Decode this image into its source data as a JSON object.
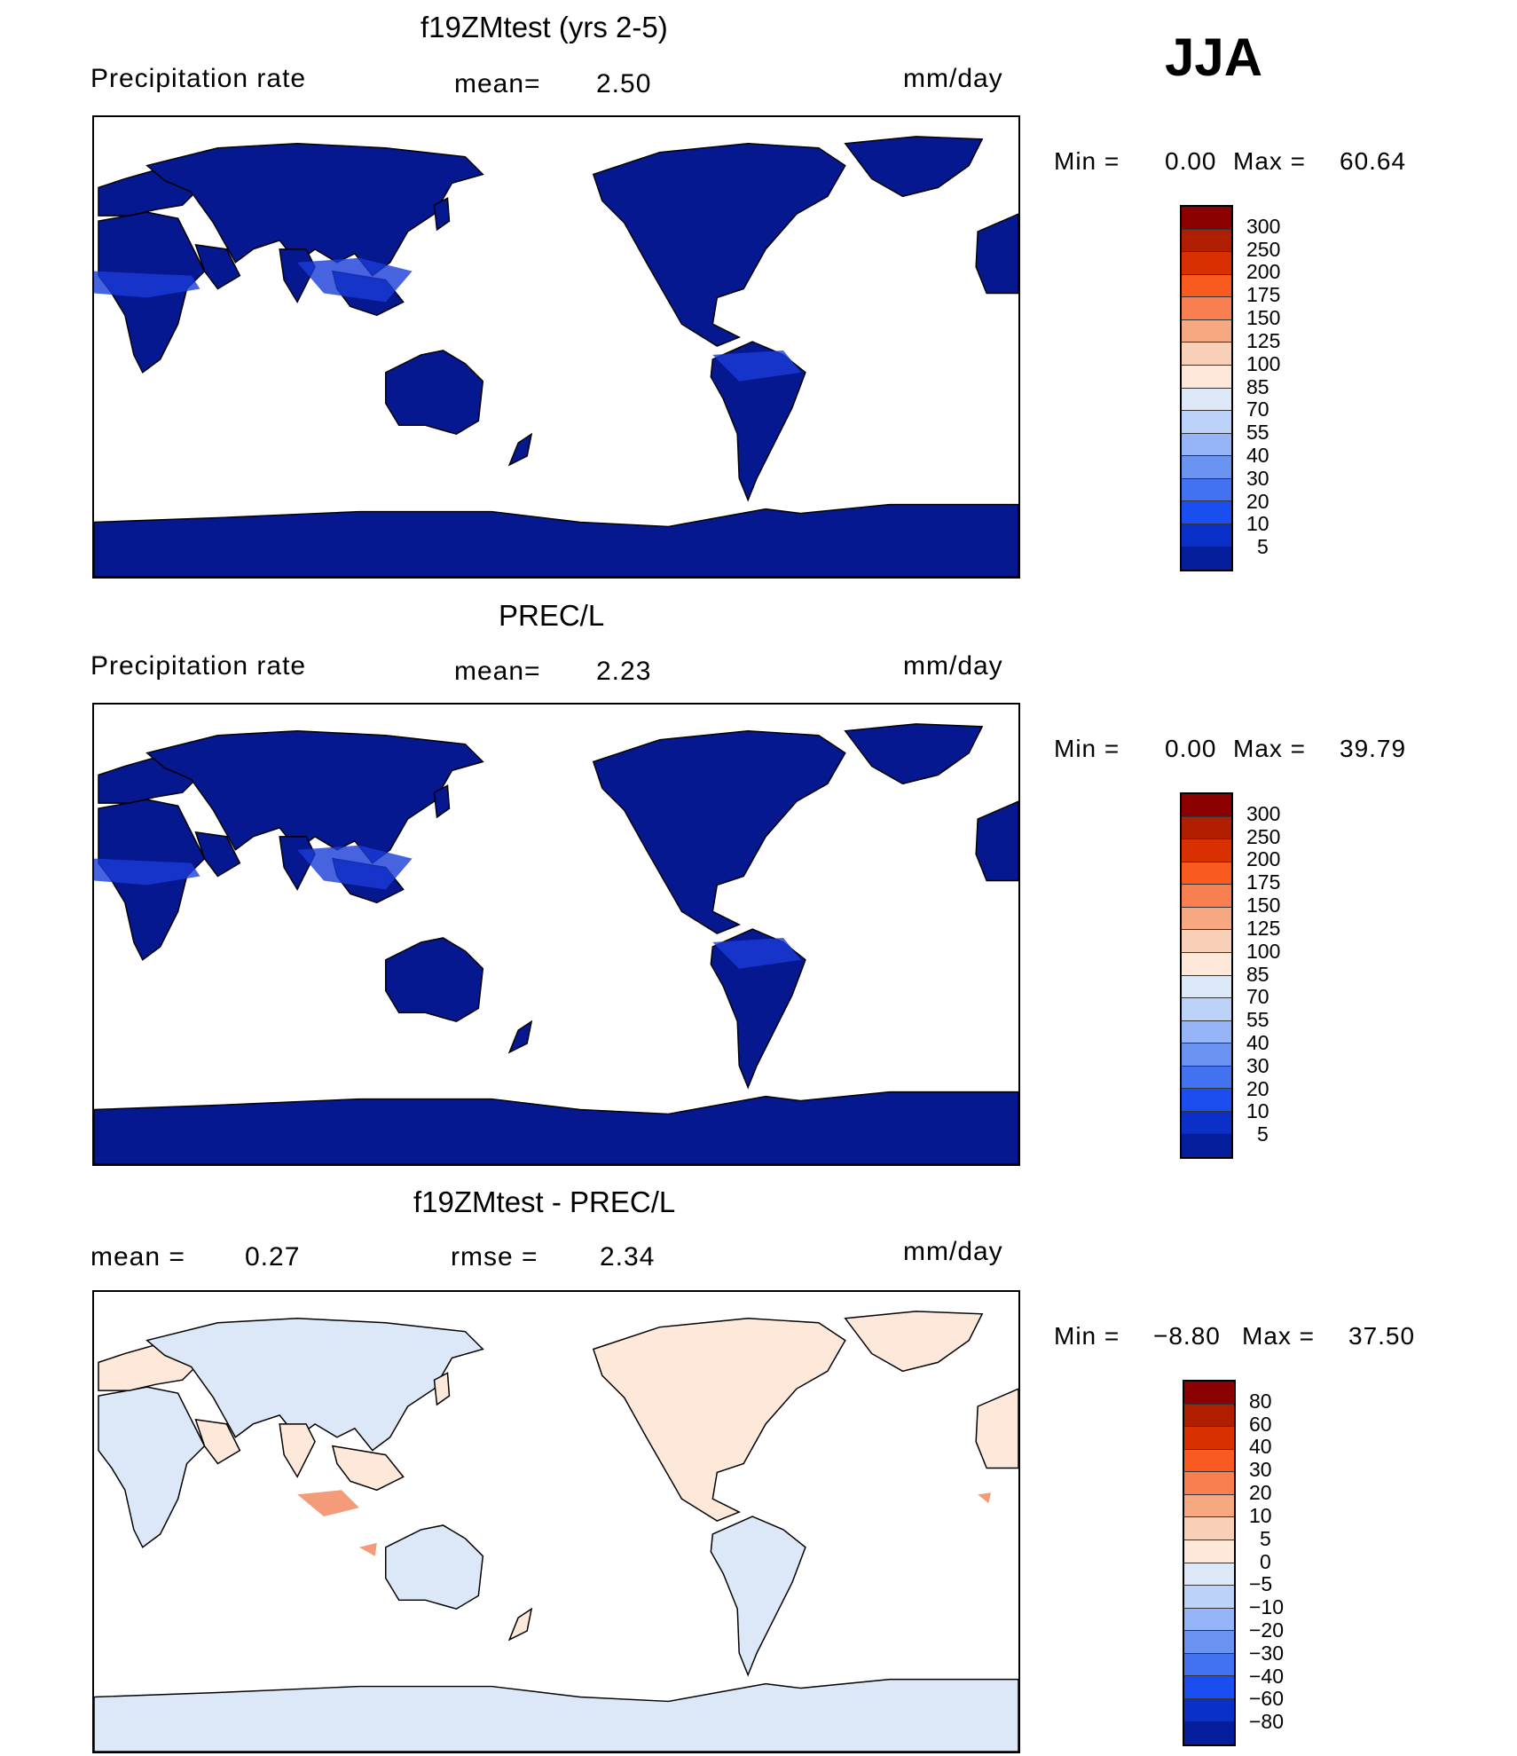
{
  "season": "JJA",
  "units": "mm/day",
  "panels": [
    {
      "title": "f19ZMtest (yrs 2-5)",
      "left_label": "Precipitation  rate",
      "stat_label": "mean=",
      "stat_value": "2.50",
      "min_label": "Min  =",
      "min_value": "0.00",
      "max_label": "Max  =",
      "max_value": "60.64",
      "field": "model precipitation"
    },
    {
      "title": "PREC/L",
      "left_label": "Precipitation  rate",
      "stat_label": "mean=",
      "stat_value": "2.23",
      "min_label": "Min  =",
      "min_value": "0.00",
      "max_label": "Max  =",
      "max_value": "39.79",
      "field": "observed precipitation"
    },
    {
      "title": "f19ZMtest - PREC/L",
      "left_label": "mean  =",
      "left_value": "0.27",
      "stat_label": "rmse  =",
      "stat_value": "2.34",
      "min_label": "Min  =",
      "min_value": "−8.80",
      "max_label": "Max  =",
      "max_value": "37.50",
      "field": "difference"
    }
  ],
  "colorbars": {
    "precip": {
      "labels": [
        "300",
        "250",
        "200",
        "175",
        "150",
        "125",
        "100",
        "85",
        "70",
        "55",
        "40",
        "30",
        "20",
        "10",
        "5"
      ],
      "colors": [
        "#8b0000",
        "#b01e00",
        "#d83000",
        "#f85a20",
        "#f88050",
        "#f8a880",
        "#f8d0b8",
        "#fde8da",
        "#dce8f8",
        "#bcd2f8",
        "#96b4f8",
        "#6a92f0",
        "#4272f0",
        "#1a4ef0",
        "#0a30c8",
        "#051e9c"
      ]
    },
    "diff": {
      "labels": [
        "80",
        "60",
        "40",
        "30",
        "20",
        "10",
        "5",
        "0",
        "−5",
        "−10",
        "−20",
        "−30",
        "−40",
        "−60",
        "−80"
      ],
      "colors": [
        "#8b0000",
        "#b01e00",
        "#d83000",
        "#f85a20",
        "#f88050",
        "#f8a880",
        "#f8d0b8",
        "#fde8da",
        "#dce8f8",
        "#bcd2f8",
        "#96b4f8",
        "#6a92f0",
        "#4272f0",
        "#1a4ef0",
        "#0a30c8",
        "#051e9c"
      ]
    }
  },
  "map_colors": {
    "land_precip": "#05188f",
    "land_precip_wet": "#1a3cd8",
    "diff_positive": "#fde8da",
    "diff_negative": "#dce8f8",
    "diff_hot": "#f07040",
    "ocean": "#ffffff"
  }
}
